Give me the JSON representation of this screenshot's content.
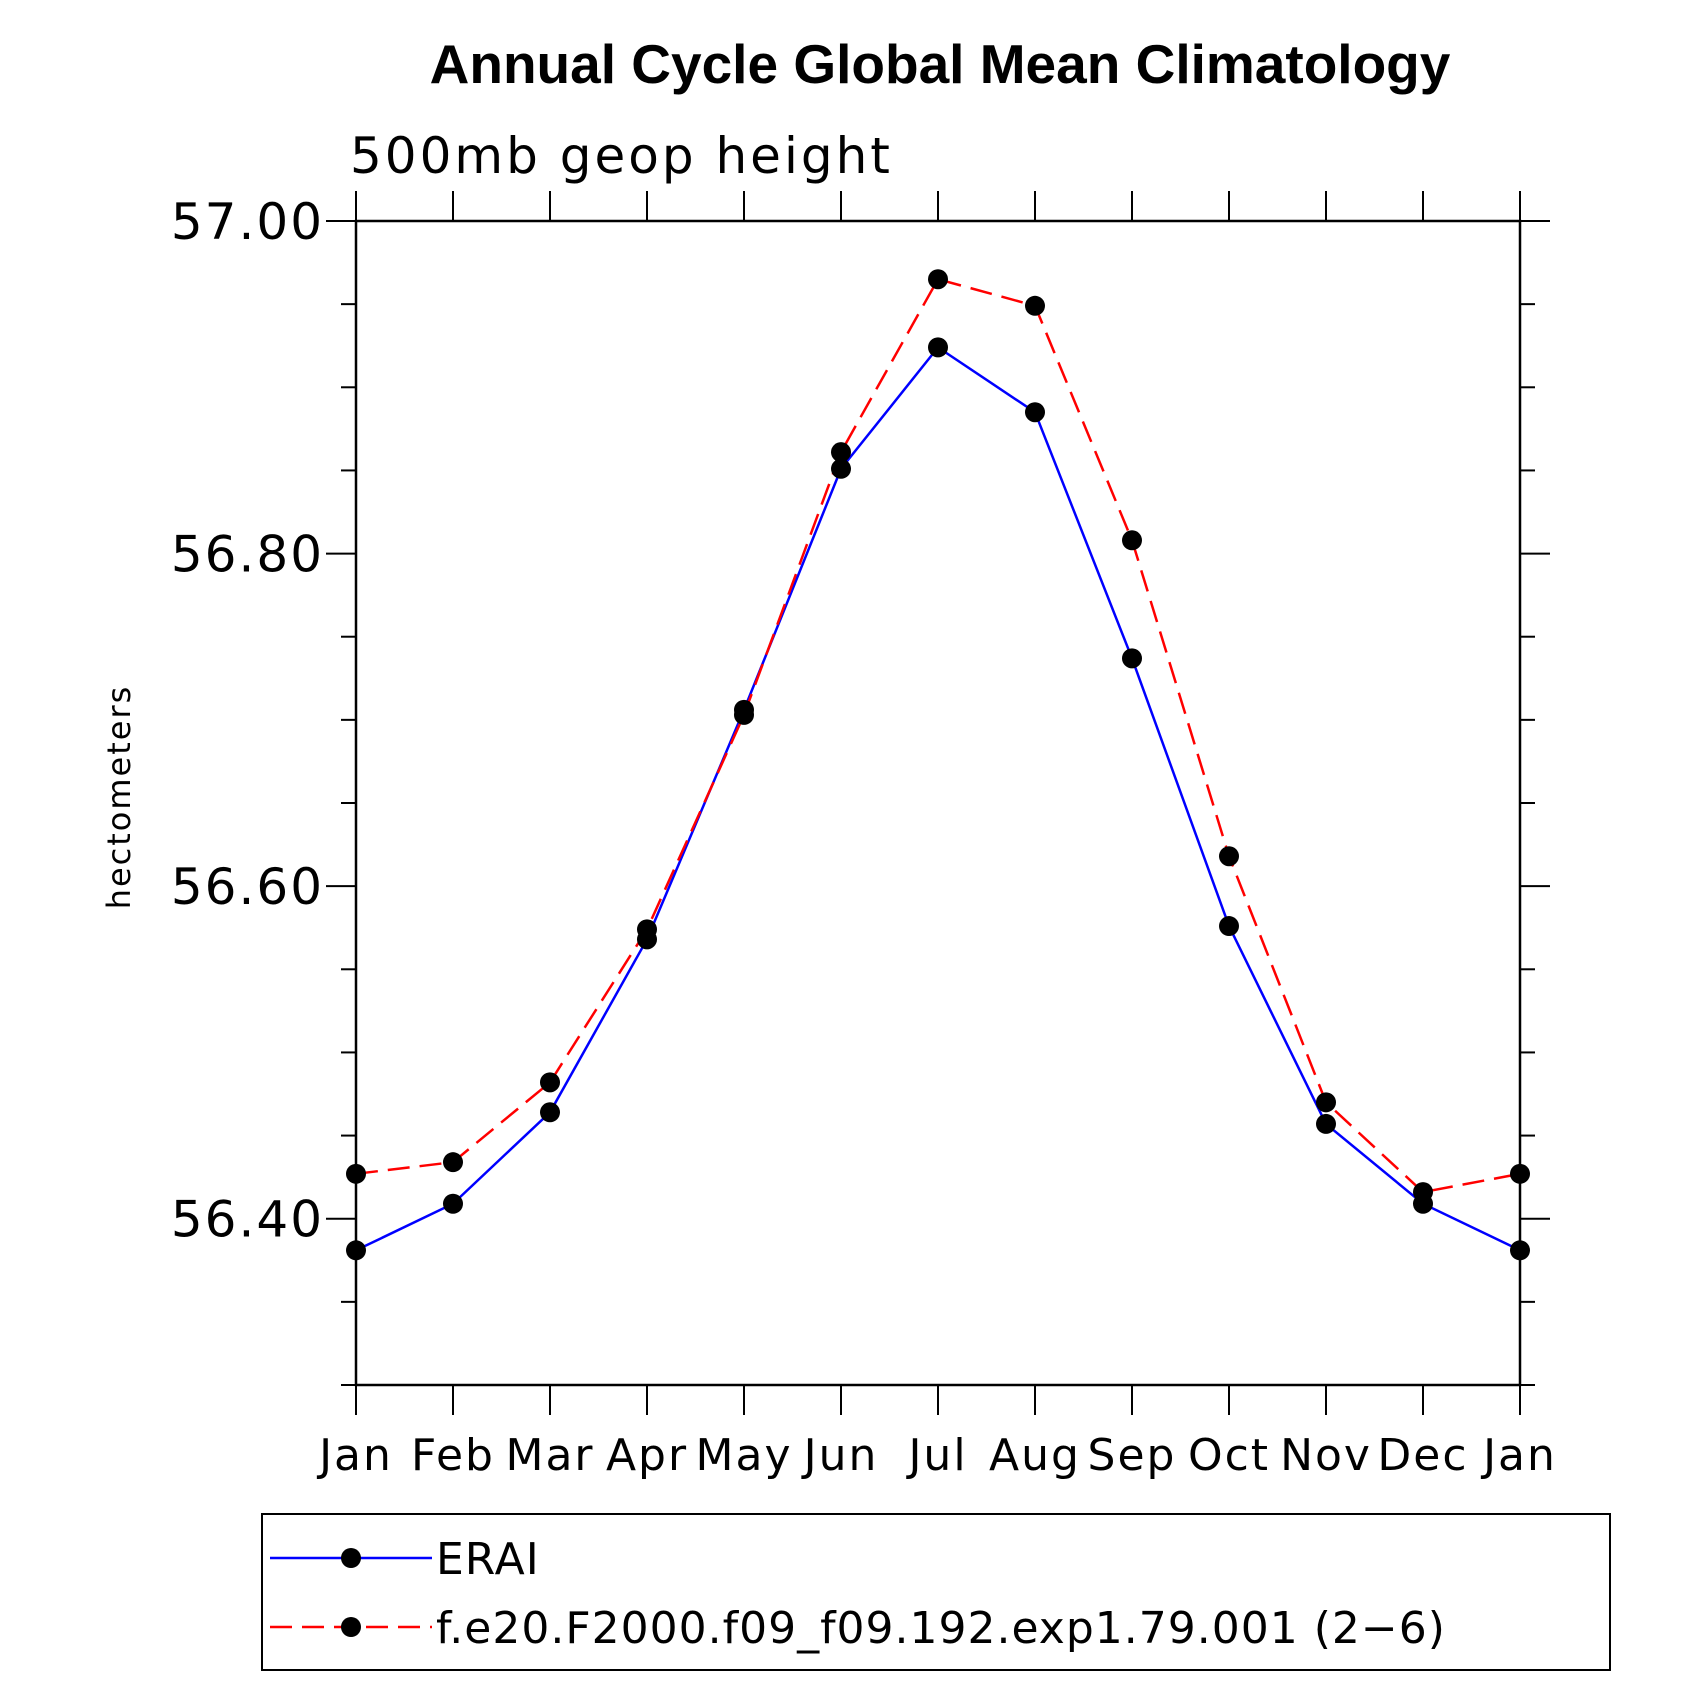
{
  "chart_data": {
    "type": "line",
    "title": "Annual Cycle Global Mean Climatology",
    "subtitle": "500mb geop height",
    "ylabel": "hectometers",
    "xlabel": "",
    "categories": [
      "Jan",
      "Feb",
      "Mar",
      "Apr",
      "May",
      "Jun",
      "Jul",
      "Aug",
      "Sep",
      "Oct",
      "Nov",
      "Dec",
      "Jan"
    ],
    "ylim": [
      56.3,
      57.0
    ],
    "yticks_major": [
      56.4,
      56.6,
      56.8,
      57.0
    ],
    "ytick_labels": [
      "56.40",
      "56.60",
      "56.80",
      "57.00"
    ],
    "ytick_minor_step": 0.05,
    "grid": false,
    "legend_position": "bottom",
    "series": [
      {
        "name": "ERAI",
        "color": "#0000ff",
        "dash": "solid",
        "marker": "filled-circle",
        "values": [
          56.381,
          56.409,
          56.464,
          56.568,
          56.706,
          56.851,
          56.924,
          56.885,
          56.737,
          56.576,
          56.457,
          56.409,
          56.381
        ]
      },
      {
        "name": "f.e20.F2000.f09_f09.192.exp1.79.001 (2−6)",
        "color": "#ff0000",
        "dash": "dashed",
        "marker": "filled-circle",
        "values": [
          56.427,
          56.434,
          56.482,
          56.574,
          56.703,
          56.861,
          56.965,
          56.949,
          56.808,
          56.618,
          56.47,
          56.416,
          56.427
        ]
      }
    ]
  }
}
